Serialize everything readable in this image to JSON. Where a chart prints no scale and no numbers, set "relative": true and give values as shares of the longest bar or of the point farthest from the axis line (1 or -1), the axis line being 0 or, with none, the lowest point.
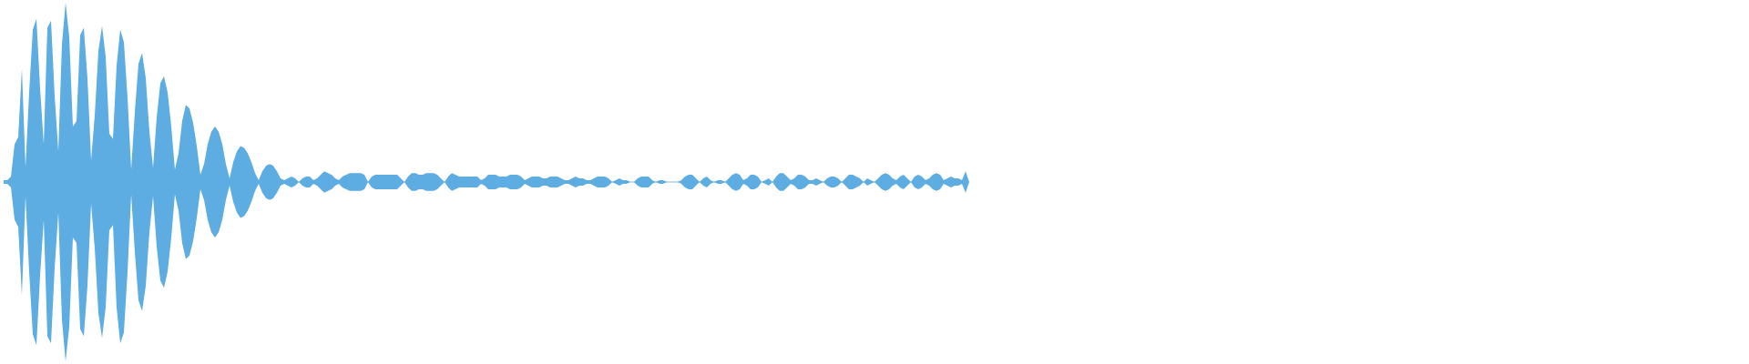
{
  "chart_data": {
    "type": "area",
    "relative": true,
    "categories": [
      null,
      null,
      null,
      null,
      null,
      null,
      null,
      null,
      null,
      null,
      null,
      null,
      null,
      null,
      null,
      null,
      null,
      null,
      null,
      null,
      null,
      null,
      null,
      null,
      null,
      null,
      null,
      null,
      null,
      null,
      null,
      null,
      null,
      null,
      null,
      null,
      null,
      null,
      null,
      null,
      null,
      null,
      null,
      null,
      null,
      null,
      null,
      null,
      null,
      null,
      null,
      null,
      null,
      null,
      null,
      null,
      null,
      null,
      null,
      null,
      null,
      null,
      null,
      null,
      null,
      null,
      null,
      null,
      null,
      null,
      null,
      null,
      null,
      null,
      null,
      null,
      null,
      null,
      null,
      null,
      null,
      null,
      null,
      null,
      null,
      null,
      null,
      null,
      null,
      null,
      null,
      null,
      null,
      null,
      null,
      null,
      null,
      null,
      null,
      null,
      null,
      null,
      null,
      null,
      null,
      null,
      null,
      null,
      null,
      null,
      null,
      null,
      null,
      null,
      null,
      null,
      null,
      null,
      null,
      null,
      null,
      null,
      null,
      null,
      null,
      null,
      null,
      null,
      null,
      null,
      null,
      null,
      null,
      null,
      null,
      null,
      null,
      null,
      null,
      null,
      null,
      null,
      null,
      null,
      null,
      null,
      null,
      null,
      null,
      null,
      null,
      null,
      null,
      null,
      null,
      null,
      null,
      null,
      null,
      null,
      null,
      null,
      null,
      null,
      null,
      null,
      null,
      null,
      null,
      null,
      null,
      null,
      null,
      null,
      null,
      null,
      null,
      null,
      null,
      null,
      null,
      null,
      null,
      null,
      null,
      null,
      null,
      null,
      null,
      null,
      null,
      null,
      null,
      null,
      null,
      null,
      null,
      null,
      null,
      null,
      null,
      null,
      null,
      null,
      null,
      null,
      null,
      null,
      null,
      null,
      null,
      null,
      null,
      null,
      null,
      null,
      null,
      null,
      null,
      null,
      null,
      null,
      null,
      null,
      null,
      null,
      null,
      null,
      null,
      null,
      null,
      null,
      null,
      null,
      null,
      null,
      null,
      null,
      null,
      null,
      null,
      null,
      null,
      null,
      null,
      null,
      null,
      null,
      null,
      null,
      null,
      null,
      null,
      null,
      null,
      null,
      null,
      null,
      null,
      null,
      null,
      null,
      null,
      null,
      null,
      null
    ],
    "series": [
      {
        "color": "#5dade2",
        "values": [
          0.01,
          0.01,
          0.03,
          0.21,
          0.25,
          0.63,
          0.08,
          0.5,
          0.85,
          0.91,
          0.52,
          0.21,
          0.86,
          0.9,
          0.48,
          0.17,
          0.77,
          1.0,
          0.81,
          0.31,
          0.34,
          0.82,
          0.86,
          0.58,
          0.12,
          0.37,
          0.73,
          0.87,
          0.7,
          0.27,
          0.24,
          0.65,
          0.85,
          0.78,
          0.47,
          0.07,
          0.39,
          0.66,
          0.72,
          0.58,
          0.28,
          0.08,
          0.36,
          0.55,
          0.59,
          0.5,
          0.31,
          0.07,
          0.16,
          0.34,
          0.43,
          0.41,
          0.33,
          0.2,
          0.04,
          0.1,
          0.21,
          0.28,
          0.31,
          0.28,
          0.21,
          0.1,
          0.02,
          0.11,
          0.17,
          0.2,
          0.19,
          0.16,
          0.11,
          0.05,
          0.01,
          0.06,
          0.09,
          0.1,
          0.09,
          0.06,
          0.02,
          0.01,
          0.02,
          0.03,
          0.02,
          0.0,
          0.02,
          0.03,
          0.03,
          0.01,
          0.02,
          0.04,
          0.06,
          0.05,
          0.04,
          0.02,
          0.01,
          0.03,
          0.04,
          0.05,
          0.05,
          0.05,
          0.05,
          0.04,
          0.0,
          0.03,
          0.04,
          0.04,
          0.04,
          0.04,
          0.04,
          0.04,
          0.04,
          0.02,
          0.0,
          0.03,
          0.05,
          0.05,
          0.04,
          0.04,
          0.05,
          0.05,
          0.05,
          0.04,
          0.02,
          0.0,
          0.03,
          0.05,
          0.04,
          0.03,
          0.03,
          0.03,
          0.03,
          0.03,
          0.03,
          0.01,
          0.02,
          0.04,
          0.04,
          0.04,
          0.03,
          0.03,
          0.03,
          0.04,
          0.04,
          0.04,
          0.03,
          0.01,
          0.02,
          0.03,
          0.03,
          0.03,
          0.02,
          0.02,
          0.03,
          0.03,
          0.03,
          0.02,
          0.01,
          0.01,
          0.02,
          0.03,
          0.02,
          0.02,
          0.01,
          0.01,
          0.02,
          0.03,
          0.03,
          0.03,
          0.02,
          0.0,
          0.01,
          0.02,
          0.01,
          0.01,
          0.0,
          0.0,
          0.02,
          0.03,
          0.03,
          0.03,
          0.01,
          0.0,
          0.01,
          0.01,
          0.0,
          0.0,
          0.0,
          0.0,
          0.01,
          0.03,
          0.04,
          0.04,
          0.02,
          0.0,
          0.02,
          0.03,
          0.01,
          0.0,
          0.01,
          0.01,
          0.0,
          0.02,
          0.04,
          0.05,
          0.04,
          0.01,
          0.02,
          0.04,
          0.04,
          0.03,
          0.0,
          0.01,
          0.02,
          0.0,
          0.03,
          0.05,
          0.05,
          0.03,
          0.01,
          0.02,
          0.04,
          0.04,
          0.03,
          0.01,
          0.01,
          0.02,
          0.01,
          0.0,
          0.02,
          0.03,
          0.03,
          0.02,
          0.0,
          0.02,
          0.04,
          0.04,
          0.03,
          0.02,
          0.0,
          0.02,
          0.01,
          0.0,
          0.02,
          0.04,
          0.05,
          0.04,
          0.02,
          0.01,
          0.03,
          0.04,
          0.02,
          0.0,
          0.03,
          0.04,
          0.03,
          0.01,
          0.02,
          0.04,
          0.05,
          0.04,
          0.01,
          0.02,
          0.03,
          0.02,
          0.02,
          0.01,
          0.06,
          0.0
        ]
      },
      {
        "color": "#5dade2",
        "values": [
          -0.01,
          -0.01,
          -0.03,
          -0.21,
          -0.25,
          -0.63,
          -0.08,
          -0.5,
          -0.85,
          -0.91,
          -0.52,
          -0.21,
          -0.86,
          -0.9,
          -0.48,
          -0.17,
          -0.77,
          -1.0,
          -0.81,
          -0.31,
          -0.34,
          -0.82,
          -0.86,
          -0.58,
          -0.12,
          -0.37,
          -0.73,
          -0.87,
          -0.7,
          -0.27,
          -0.24,
          -0.7,
          -0.9,
          -0.84,
          -0.5,
          -0.07,
          -0.39,
          -0.66,
          -0.72,
          -0.58,
          -0.28,
          -0.08,
          -0.36,
          -0.55,
          -0.59,
          -0.5,
          -0.31,
          -0.07,
          -0.16,
          -0.34,
          -0.43,
          -0.41,
          -0.33,
          -0.2,
          -0.04,
          -0.1,
          -0.21,
          -0.28,
          -0.31,
          -0.28,
          -0.21,
          -0.1,
          -0.02,
          -0.11,
          -0.17,
          -0.2,
          -0.19,
          -0.16,
          -0.11,
          -0.05,
          -0.01,
          -0.06,
          -0.09,
          -0.1,
          -0.09,
          -0.06,
          -0.02,
          -0.01,
          -0.02,
          -0.03,
          -0.02,
          0.0,
          -0.02,
          -0.03,
          -0.03,
          -0.01,
          -0.02,
          -0.04,
          -0.06,
          -0.05,
          -0.04,
          -0.02,
          -0.01,
          -0.03,
          -0.04,
          -0.05,
          -0.05,
          -0.05,
          -0.05,
          -0.04,
          0.0,
          -0.03,
          -0.04,
          -0.04,
          -0.04,
          -0.04,
          -0.04,
          -0.04,
          -0.04,
          -0.02,
          0.0,
          -0.03,
          -0.05,
          -0.05,
          -0.04,
          -0.04,
          -0.05,
          -0.05,
          -0.05,
          -0.04,
          -0.02,
          0.0,
          -0.03,
          -0.05,
          -0.04,
          -0.03,
          -0.03,
          -0.03,
          -0.03,
          -0.03,
          -0.03,
          -0.01,
          -0.02,
          -0.04,
          -0.04,
          -0.04,
          -0.03,
          -0.03,
          -0.03,
          -0.04,
          -0.04,
          -0.04,
          -0.03,
          -0.01,
          -0.02,
          -0.03,
          -0.03,
          -0.03,
          -0.02,
          -0.02,
          -0.03,
          -0.03,
          -0.03,
          -0.02,
          -0.01,
          -0.01,
          -0.02,
          -0.03,
          -0.02,
          -0.02,
          -0.01,
          -0.01,
          -0.02,
          -0.03,
          -0.03,
          -0.03,
          -0.02,
          0.0,
          -0.01,
          -0.02,
          -0.01,
          -0.01,
          0.0,
          0.0,
          -0.02,
          -0.03,
          -0.03,
          -0.03,
          -0.01,
          0.0,
          -0.01,
          -0.01,
          0.0,
          0.0,
          0.0,
          0.0,
          -0.01,
          -0.03,
          -0.04,
          -0.04,
          -0.02,
          0.0,
          -0.02,
          -0.03,
          -0.01,
          0.0,
          -0.01,
          -0.01,
          0.0,
          -0.02,
          -0.04,
          -0.05,
          -0.04,
          -0.01,
          -0.02,
          -0.04,
          -0.04,
          -0.03,
          0.0,
          -0.01,
          -0.02,
          0.0,
          -0.03,
          -0.05,
          -0.05,
          -0.03,
          -0.01,
          -0.02,
          -0.04,
          -0.04,
          -0.03,
          -0.01,
          -0.01,
          -0.02,
          -0.01,
          0.0,
          -0.02,
          -0.03,
          -0.03,
          -0.02,
          0.0,
          -0.02,
          -0.04,
          -0.04,
          -0.03,
          -0.02,
          0.0,
          -0.02,
          -0.01,
          0.0,
          -0.02,
          -0.04,
          -0.05,
          -0.04,
          -0.02,
          -0.01,
          -0.03,
          -0.04,
          -0.02,
          0.0,
          -0.03,
          -0.04,
          -0.03,
          -0.01,
          -0.02,
          -0.04,
          -0.05,
          -0.04,
          -0.01,
          -0.02,
          -0.03,
          -0.02,
          -0.02,
          -0.01,
          -0.06,
          0.0
        ]
      }
    ]
  }
}
